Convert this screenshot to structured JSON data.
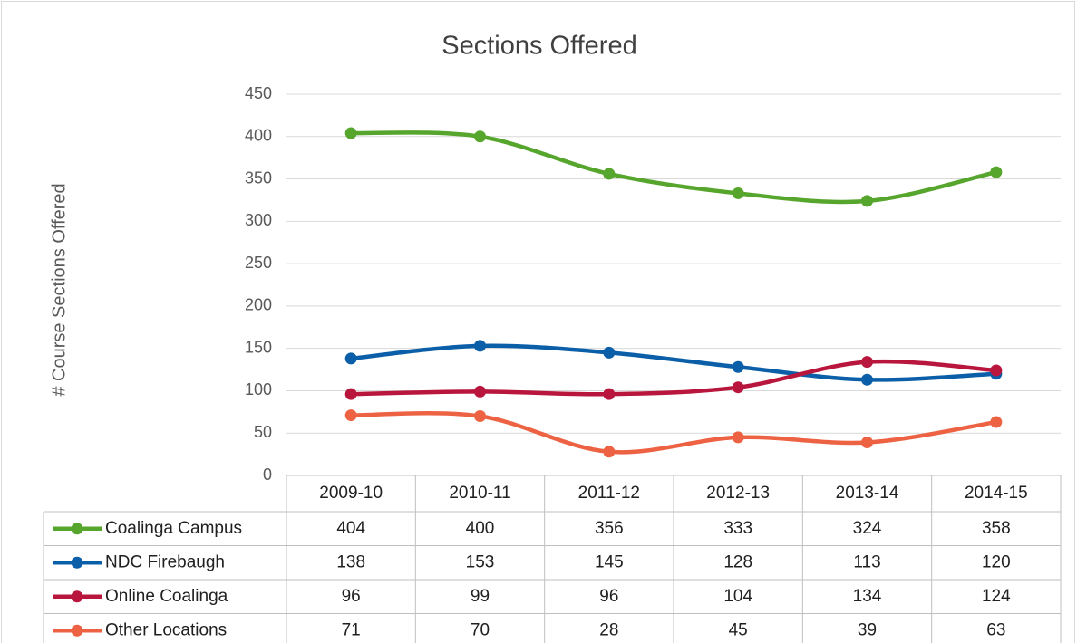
{
  "chart_data": {
    "type": "line",
    "title": "Sections Offered",
    "y_label": "# Course Sections Offered",
    "categories": [
      "2009-10",
      "2010-11",
      "2011-12",
      "2012-13",
      "2013-14",
      "2014-15"
    ],
    "series": [
      {
        "name": "Coalinga Campus",
        "color": "#56a52c",
        "values": [
          404,
          400,
          356,
          333,
          324,
          358
        ]
      },
      {
        "name": "NDC Firebaugh",
        "color": "#0b5fa8",
        "values": [
          138,
          153,
          145,
          128,
          113,
          120
        ]
      },
      {
        "name": "Online Coalinga",
        "color": "#b8163c",
        "values": [
          96,
          99,
          96,
          104,
          134,
          124
        ]
      },
      {
        "name": "Other Locations",
        "color": "#ee6244",
        "values": [
          71,
          70,
          28,
          45,
          39,
          63
        ]
      }
    ],
    "ylim": [
      0,
      450
    ],
    "yticks": [
      0,
      50,
      100,
      150,
      200,
      250,
      300,
      350,
      400,
      450
    ],
    "grid": true,
    "smooth": true,
    "data_table": true
  }
}
